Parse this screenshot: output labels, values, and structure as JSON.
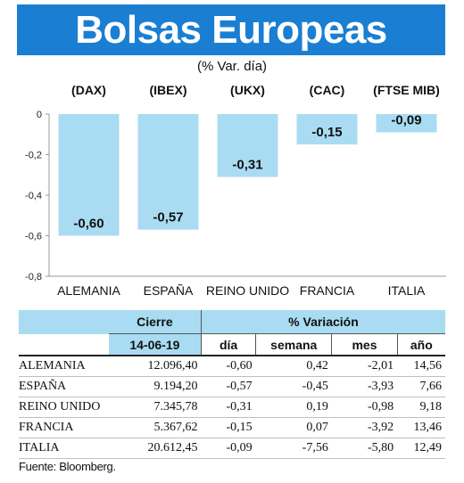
{
  "title": "Bolsas Europeas",
  "subtitle": "(% Var. día)",
  "chart_data": {
    "type": "bar",
    "series_codes": [
      "(DAX)",
      "(IBEX)",
      "(UKX)",
      "(CAC)",
      "(FTSE MIB)"
    ],
    "categories": [
      "ALEMANIA",
      "ESPAÑA",
      "REINO UNIDO",
      "FRANCIA",
      "ITALIA"
    ],
    "values": [
      -0.6,
      -0.57,
      -0.31,
      -0.15,
      -0.09
    ],
    "value_labels": [
      "-0,60",
      "-0,57",
      "-0,31",
      "-0,15",
      "-0,09"
    ],
    "yticks": [
      0,
      -0.2,
      -0.4,
      -0.6,
      -0.8
    ],
    "ytick_labels": [
      "0",
      "-0,2",
      "-0,4",
      "-0,6",
      "-0,8"
    ],
    "ylim": [
      -0.8,
      0
    ],
    "bar_color": "#a9dcf2",
    "grid": false
  },
  "table": {
    "header_cierre": "Cierre",
    "header_variacion": "% Variación",
    "date": "14-06-19",
    "col_dia": "día",
    "col_semana": "semana",
    "col_mes": "mes",
    "col_anio": "año",
    "rows": [
      {
        "name": "ALEMANIA",
        "cierre": "12.096,40",
        "dia": "-0,60",
        "semana": "0,42",
        "mes": "-2,01",
        "anio": "14,56"
      },
      {
        "name": "ESPAÑA",
        "cierre": "9.194,20",
        "dia": "-0,57",
        "semana": "-0,45",
        "mes": "-3,93",
        "anio": "7,66"
      },
      {
        "name": "REINO UNIDO",
        "cierre": "7.345,78",
        "dia": "-0,31",
        "semana": "0,19",
        "mes": "-0,98",
        "anio": "9,18"
      },
      {
        "name": "FRANCIA",
        "cierre": "5.367,62",
        "dia": "-0,15",
        "semana": "0,07",
        "mes": "-3,92",
        "anio": "13,46"
      },
      {
        "name": "ITALIA",
        "cierre": "20.612,45",
        "dia": "-0,09",
        "semana": "-7,56",
        "mes": "-5,80",
        "anio": "12,49"
      }
    ]
  },
  "source": "Fuente: Bloomberg.",
  "colors": {
    "banner": "#1a7fd2",
    "header_fill": "#a9dcf2"
  }
}
